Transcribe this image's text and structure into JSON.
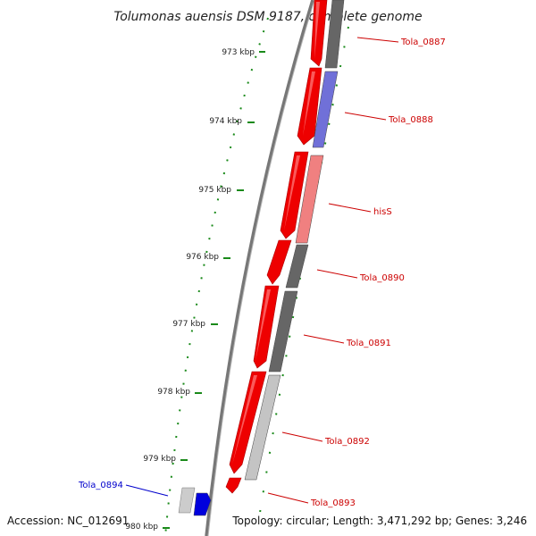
{
  "title": "Tolumonas auensis DSM 9187, complete genome",
  "accession": "Accession: NC_012691",
  "topology": "Topology: circular; Length: 3,471,292 bp; Genes: 3,246",
  "colors": {
    "forward_gene": "#ee0000",
    "backbone": "#777777",
    "minor_tick": "#1a8a1a",
    "major_tick": "#1a8a1a",
    "label_red": "#cc0000",
    "label_blue": "#0000cc"
  },
  "ticks": [
    {
      "label": "973 kbp"
    },
    {
      "label": "974 kbp"
    },
    {
      "label": "975 kbp"
    },
    {
      "label": "976 kbp"
    },
    {
      "label": "977 kbp"
    },
    {
      "label": "978 kbp"
    },
    {
      "label": "979 kbp"
    },
    {
      "label": "980 kbp"
    }
  ],
  "genes": [
    {
      "name": "Tola_0887",
      "color": "#666666",
      "label_color": "#cc0000"
    },
    {
      "name": "Tola_0888",
      "color": "#7070d8",
      "label_color": "#cc0000"
    },
    {
      "name": "hisS",
      "color": "#f08080",
      "label_color": "#cc0000"
    },
    {
      "name": "Tola_0890",
      "color": "#666666",
      "label_color": "#cc0000"
    },
    {
      "name": "Tola_0891",
      "color": "#666666",
      "label_color": "#cc0000"
    },
    {
      "name": "Tola_0892",
      "color": "#c4c4c4",
      "label_color": "#cc0000"
    },
    {
      "name": "Tola_0893",
      "color": "#ee0000",
      "label_color": "#cc0000"
    },
    {
      "name": "Tola_0894",
      "color": "#0000dd",
      "label_color": "#0000cc"
    }
  ]
}
